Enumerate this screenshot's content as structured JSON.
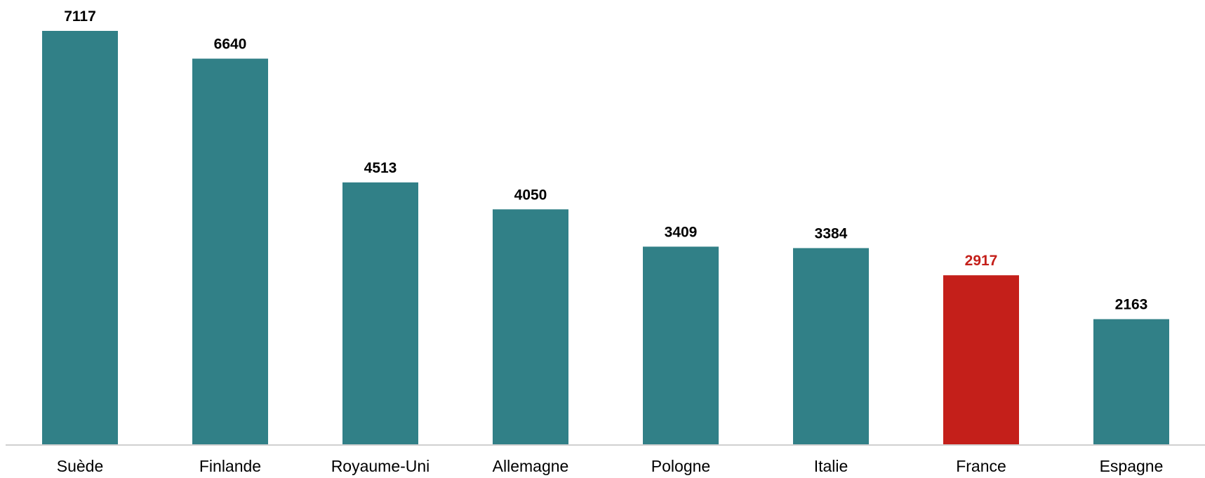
{
  "chart_data": {
    "type": "bar",
    "title": "",
    "xlabel": "",
    "ylabel": "",
    "categories": [
      "Suède",
      "Finlande",
      "Royaume-Uni",
      "Allemagne",
      "Pologne",
      "Italie",
      "France",
      "Espagne"
    ],
    "values": [
      7117,
      6640,
      4513,
      4050,
      3409,
      3384,
      2917,
      2163
    ],
    "ylim": [
      0,
      7117
    ],
    "grid": false,
    "legend": "none",
    "highlight_category": "France"
  },
  "colors": {
    "bar": "#318087",
    "highlight": "#C41F1A",
    "value_label": "#000000",
    "highlight_label": "#C41F1A",
    "axis": "#D0D0D0"
  }
}
